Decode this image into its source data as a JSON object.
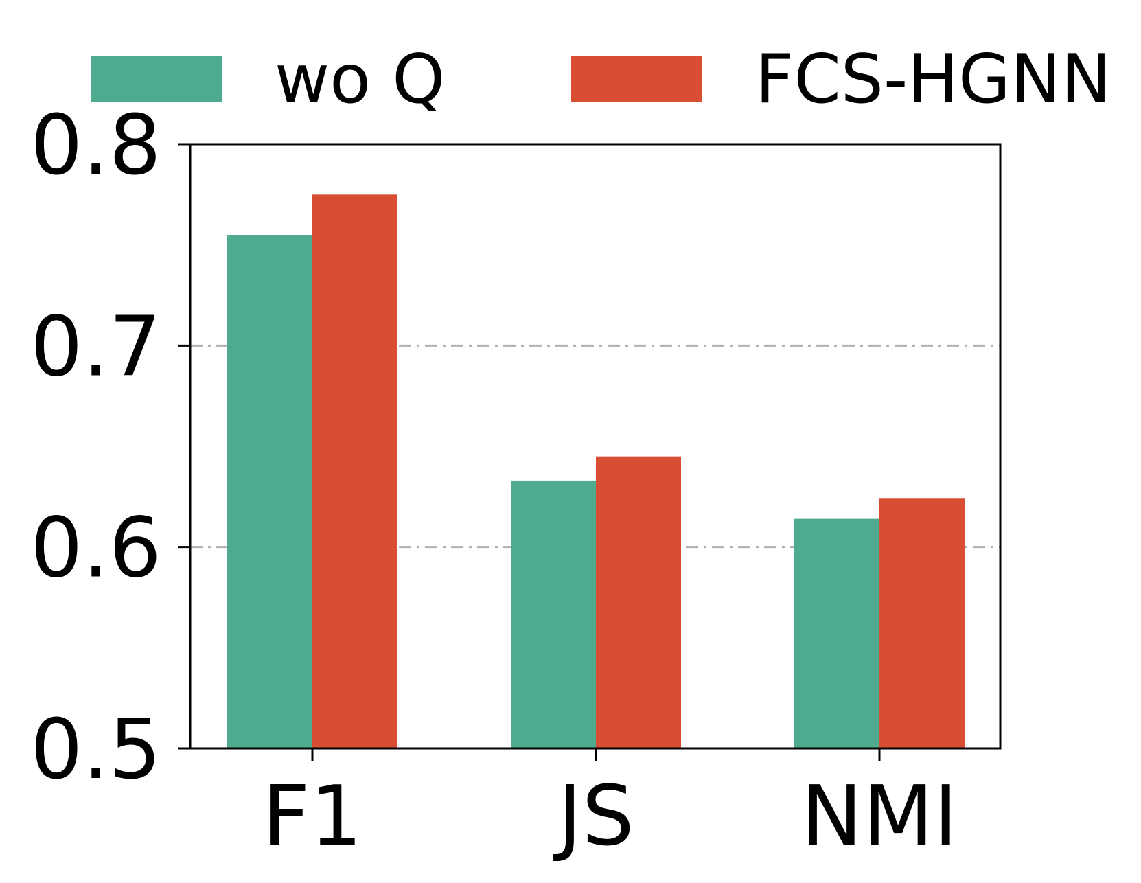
{
  "chart_data": {
    "type": "bar",
    "categories": [
      "F1",
      "JS",
      "NMI"
    ],
    "series": [
      {
        "name": "wo Q",
        "values": [
          0.755,
          0.633,
          0.614
        ],
        "color": "#4fab8f"
      },
      {
        "name": "FCS-HGNN",
        "values": [
          0.775,
          0.645,
          0.624
        ],
        "color": "#d84e33"
      }
    ],
    "title": "",
    "xlabel": "",
    "ylabel": "",
    "ylim": [
      0.5,
      0.8
    ],
    "yticks": [
      0.5,
      0.6,
      0.7,
      0.8
    ],
    "ytick_labels": [
      "0.5",
      "0.6",
      "0.7",
      "0.8"
    ],
    "grid": {
      "axis": "y",
      "style": "dash-dot",
      "color": "#b0b0b0"
    },
    "legend": {
      "placement": "top",
      "columns": 2
    }
  }
}
